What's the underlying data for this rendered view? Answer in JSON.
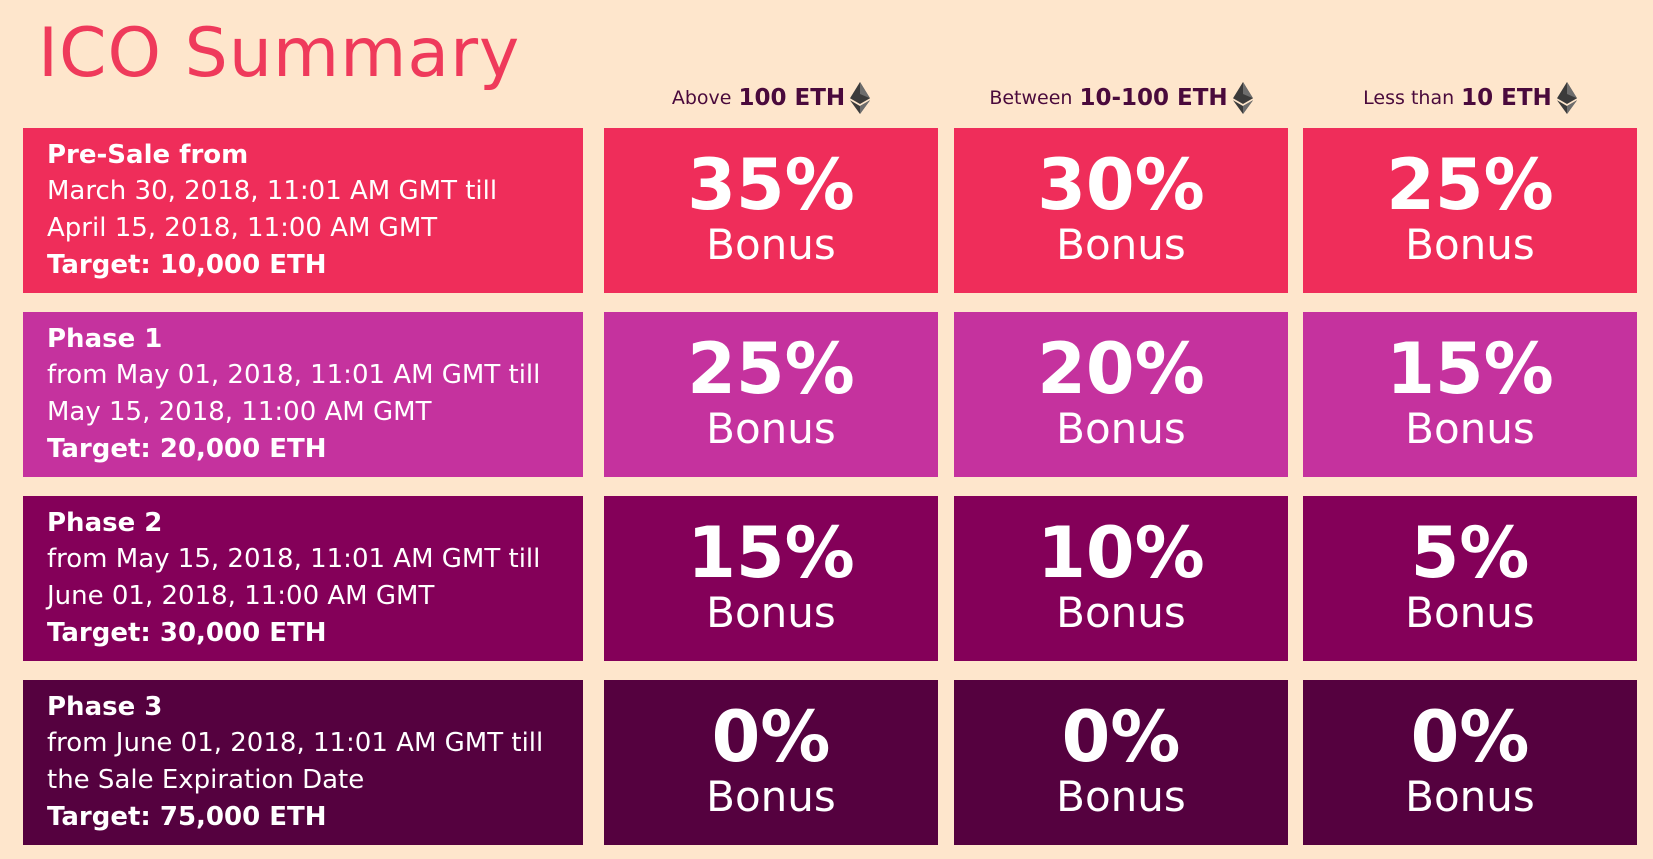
{
  "title": "ICO Summary",
  "columns": [
    {
      "prefix": "Above",
      "amount": "100 ETH",
      "icon": "ethereum-icon"
    },
    {
      "prefix": "Between",
      "amount": "10-100 ETH",
      "icon": "ethereum-icon"
    },
    {
      "prefix": "Less than",
      "amount": "10 ETH",
      "icon": "ethereum-icon"
    }
  ],
  "phases": [
    {
      "name": "Pre-Sale from",
      "line1": "March 30, 2018, 11:01 AM GMT till",
      "line2": "April 15, 2018, 11:00 AM GMT",
      "target": "Target: 10,000 ETH",
      "color": "#ef2d5a",
      "bonuses": [
        {
          "pct": "35%",
          "label": "Bonus"
        },
        {
          "pct": "30%",
          "label": "Bonus"
        },
        {
          "pct": "25%",
          "label": "Bonus"
        }
      ]
    },
    {
      "name": "Phase 1",
      "line1": "from May 01, 2018, 11:01 AM GMT till",
      "line2": "May 15, 2018, 11:00 AM GMT",
      "target": "Target: 20,000 ETH",
      "color": "#c5329e",
      "bonuses": [
        {
          "pct": "25%",
          "label": "Bonus"
        },
        {
          "pct": "20%",
          "label": "Bonus"
        },
        {
          "pct": "15%",
          "label": "Bonus"
        }
      ]
    },
    {
      "name": "Phase 2",
      "line1": "from May 15, 2018, 11:01 AM GMT till",
      "line2": "June 01, 2018, 11:00 AM GMT",
      "target": "Target: 30,000 ETH",
      "color": "#840059",
      "bonuses": [
        {
          "pct": "15%",
          "label": "Bonus"
        },
        {
          "pct": "10%",
          "label": "Bonus"
        },
        {
          "pct": "5%",
          "label": "Bonus"
        }
      ]
    },
    {
      "name": "Phase 3",
      "line1": "from June 01, 2018, 11:01 AM GMT till",
      "line2": "the Sale Expiration Date",
      "target": "Target: 75,000 ETH",
      "color": "#55013f",
      "bonuses": [
        {
          "pct": "0%",
          "label": "Bonus"
        },
        {
          "pct": "0%",
          "label": "Bonus"
        },
        {
          "pct": "0%",
          "label": "Bonus"
        }
      ]
    }
  ],
  "colors": {
    "background": "#fee6cc",
    "title": "#ef3a5b",
    "header_text": "#4a0a3c",
    "cell_text": "#ffffff"
  }
}
